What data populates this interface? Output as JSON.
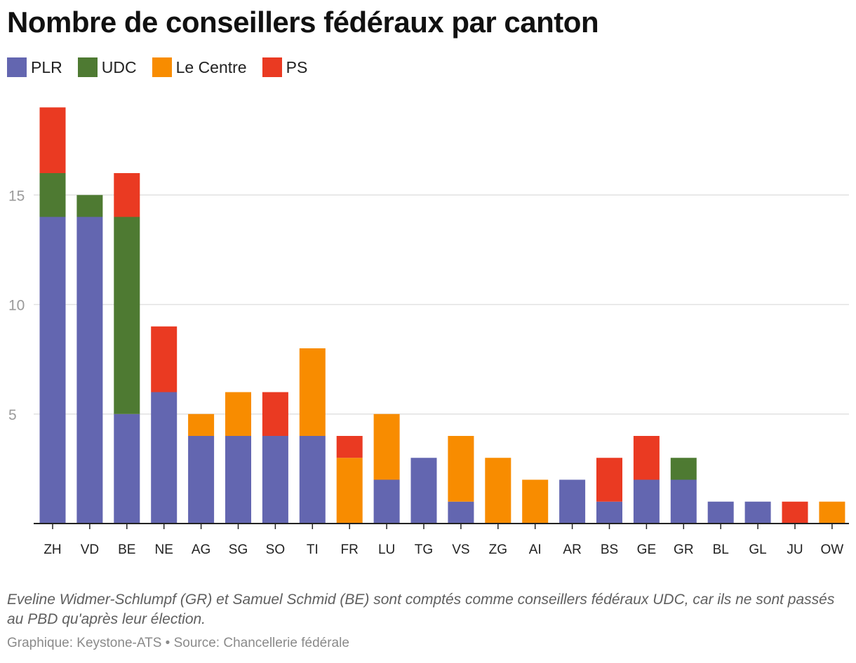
{
  "title": "Nombre de conseillers fédéraux par canton",
  "colors": {
    "PLR": "#6366b0",
    "UDC": "#4e7a32",
    "Le Centre": "#f88c00",
    "PS": "#ea3a22"
  },
  "chart_data": {
    "type": "bar",
    "stacked": true,
    "title": "Nombre de conseillers fédéraux par canton",
    "xlabel": "",
    "ylabel": "",
    "ylim": [
      0,
      19
    ],
    "yticks": [
      5,
      10,
      15
    ],
    "grid": true,
    "legend_position": "top-left",
    "categories": [
      "ZH",
      "VD",
      "BE",
      "NE",
      "AG",
      "SG",
      "SO",
      "TI",
      "FR",
      "LU",
      "TG",
      "VS",
      "ZG",
      "AI",
      "AR",
      "BS",
      "GE",
      "GR",
      "BL",
      "GL",
      "JU",
      "OW"
    ],
    "series": [
      {
        "name": "PLR",
        "values": [
          14,
          14,
          5,
          6,
          4,
          4,
          4,
          4,
          0,
          2,
          3,
          1,
          0,
          0,
          2,
          1,
          2,
          2,
          1,
          1,
          0,
          0
        ]
      },
      {
        "name": "UDC",
        "values": [
          2,
          1,
          9,
          0,
          0,
          0,
          0,
          0,
          0,
          0,
          0,
          0,
          0,
          0,
          0,
          0,
          0,
          1,
          0,
          0,
          0,
          0
        ]
      },
      {
        "name": "Le Centre",
        "values": [
          0,
          0,
          0,
          0,
          1,
          2,
          0,
          4,
          3,
          3,
          0,
          3,
          3,
          2,
          0,
          0,
          0,
          0,
          0,
          0,
          0,
          1
        ]
      },
      {
        "name": "PS",
        "values": [
          3,
          0,
          2,
          3,
          0,
          0,
          2,
          0,
          1,
          0,
          0,
          0,
          0,
          0,
          0,
          2,
          2,
          0,
          0,
          0,
          1,
          0
        ]
      }
    ]
  },
  "note": "Eveline Widmer-Schlumpf (GR) et Samuel Schmid (BE) sont comptés comme conseillers fédéraux UDC, car ils ne sont passés au PBD qu'après leur élection.",
  "source": "Graphique: Keystone-ATS • Source: Chancellerie fédérale"
}
